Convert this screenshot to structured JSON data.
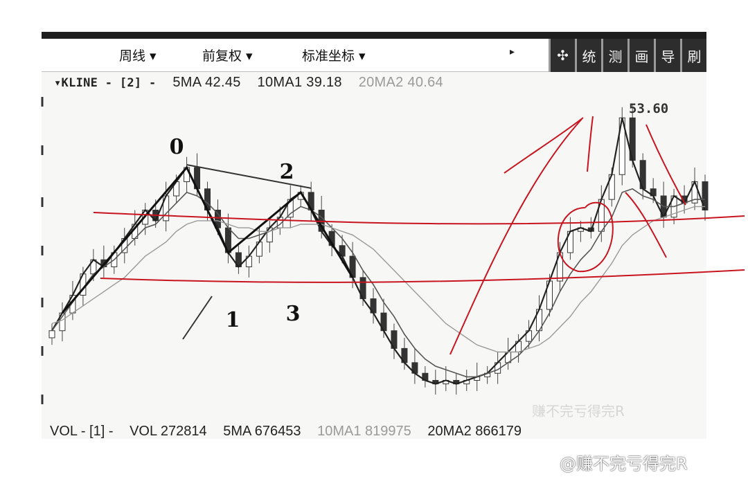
{
  "toolbar": {
    "period": "周线 ▾",
    "adjust": "前复权 ▾",
    "axis": "标准坐标 ▾",
    "arrow": "▸",
    "tools": [
      {
        "name": "crosshair",
        "label": "✣"
      },
      {
        "name": "stats",
        "label": "统"
      },
      {
        "name": "measure",
        "label": "测"
      },
      {
        "name": "draw",
        "label": "画"
      },
      {
        "name": "export",
        "label": "导"
      },
      {
        "name": "refresh",
        "label": "刷"
      }
    ]
  },
  "indicators": {
    "kline": "▾KLINE - [2] -",
    "ma5": "5MA 42.45",
    "ma10": "10MA1 39.18",
    "ma20": "20MA2 40.64"
  },
  "volume": {
    "label": "VOL - [1] -",
    "vol": "VOL 272814",
    "ma5": "5MA 676453",
    "ma10": "10MA1 819975",
    "ma20": "20MA2 866179"
  },
  "watermark_inner": "赚不完亏得完R",
  "watermark_outer": "@赚不完亏得完R",
  "chart_data": {
    "type": "line",
    "title": "",
    "xlabel": "",
    "ylabel": "",
    "peak_label": "53.60",
    "wave_labels": [
      "0",
      "1",
      "2",
      "3"
    ],
    "series": [
      {
        "values": [
          18,
          23,
          28,
          34,
          38,
          36,
          40,
          44,
          48,
          52,
          49,
          56,
          60,
          64,
          58,
          52,
          47,
          40,
          36,
          39,
          43,
          47,
          50,
          55,
          57,
          52,
          46,
          42,
          39,
          33,
          27,
          23,
          18,
          13,
          9,
          6,
          4,
          3,
          4,
          3,
          4,
          5,
          6,
          9,
          12,
          15,
          18,
          24,
          32,
          40,
          46,
          47,
          46,
          55,
          62,
          78,
          66,
          58,
          56,
          50,
          56,
          54,
          60,
          52
        ]
      },
      {
        "values": [
          18,
          22,
          26,
          30,
          34,
          36,
          38,
          41,
          44,
          47,
          48,
          51,
          54,
          57,
          56,
          54,
          51,
          47,
          44,
          44,
          45,
          46,
          48,
          51,
          53,
          52,
          50,
          47,
          44,
          40,
          35,
          31,
          26,
          22,
          17,
          13,
          10,
          8,
          7,
          6,
          5,
          5,
          6,
          7,
          9,
          11,
          14,
          18,
          23,
          29,
          34,
          38,
          41,
          46,
          50,
          57,
          58,
          56,
          55,
          53,
          53,
          54,
          55,
          55
        ]
      },
      {
        "values": [
          20,
          21,
          23,
          25,
          27,
          29,
          31,
          33,
          36,
          39,
          41,
          43,
          46,
          48,
          49,
          49,
          49,
          48,
          47,
          47,
          46,
          46,
          47,
          47,
          48,
          48,
          48,
          47,
          46,
          45,
          43,
          41,
          38,
          35,
          32,
          29,
          26,
          23,
          20,
          18,
          16,
          14,
          13,
          12,
          12,
          12,
          13,
          14,
          16,
          19,
          22,
          26,
          29,
          33,
          37,
          42,
          45,
          47,
          49,
          50,
          51,
          52,
          53,
          53
        ]
      }
    ],
    "price_levels": [
      48,
      31
    ]
  }
}
